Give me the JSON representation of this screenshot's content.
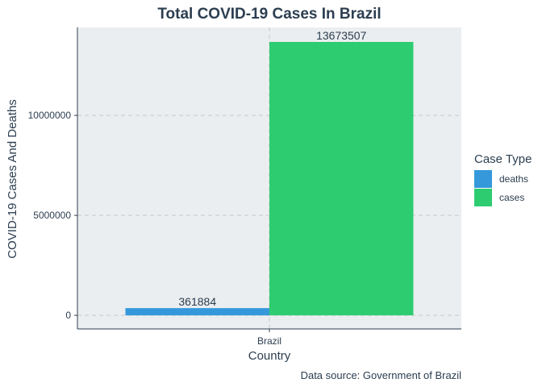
{
  "chart_data": {
    "type": "bar",
    "title": "Total COVID-19 Cases In Brazil",
    "xlabel": "Country",
    "ylabel": "COVID-19 Cases And Deaths",
    "caption": "Data source: Government of Brazil",
    "categories": [
      "Brazil"
    ],
    "series": [
      {
        "name": "deaths",
        "values": [
          361884
        ],
        "color": "#3498db"
      },
      {
        "name": "cases",
        "values": [
          13673507
        ],
        "color": "#2ecc71"
      }
    ],
    "ylim": [
      -680000,
      14400000
    ],
    "yticks": [
      0,
      5000000,
      10000000
    ],
    "ytick_labels": [
      "0",
      "5000000",
      "10000000"
    ],
    "grid": true,
    "legend": {
      "title": "Case Type",
      "position": "right"
    },
    "colors": {
      "panel": "#ebeef0",
      "grid": "#c3c9cd",
      "axis": "#2c3e50",
      "text": "#2c3e50"
    }
  }
}
